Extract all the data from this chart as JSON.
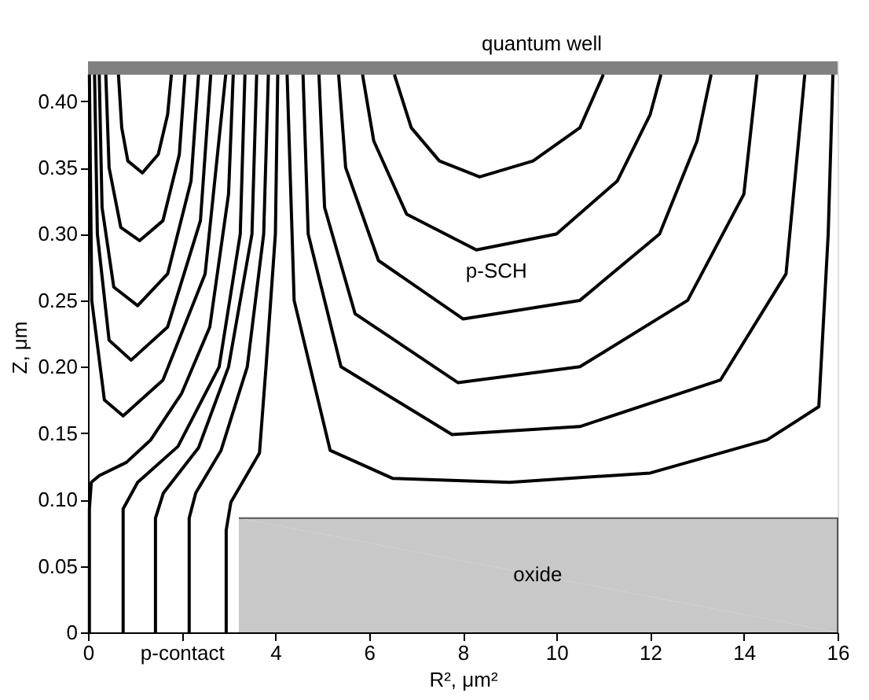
{
  "chart_data": {
    "type": "line",
    "xlabel": "R², μm²",
    "ylabel": "Z, μm",
    "xlim": [
      0,
      16
    ],
    "ylim": [
      0,
      0.43
    ],
    "xticks": [
      0,
      {
        "value": 2,
        "label": "p-contact"
      },
      4,
      6,
      8,
      10,
      12,
      14,
      16
    ],
    "yticks": [
      0,
      0.05,
      {
        "value": 0.1,
        "label": "0.10"
      },
      0.15,
      {
        "value": 0.2,
        "label": "0.20"
      },
      0.25,
      {
        "value": 0.3,
        "label": "0.30"
      },
      0.35,
      {
        "value": 0.4,
        "label": "0.40"
      }
    ],
    "grid": false,
    "series": [
      {
        "type": "area",
        "color": "#c8c8c8",
        "x": [
          3.22,
          16
        ],
        "values": [
          0.086,
          0.086
        ]
      },
      {
        "color": "#000000",
        "x": [
          0.65,
          0.72,
          0.85,
          1.16,
          1.5,
          1.7,
          1.78
        ],
        "values": [
          0.42,
          0.38,
          0.355,
          0.346,
          0.36,
          0.39,
          0.42
        ]
      },
      {
        "color": "#000000",
        "x": [
          0.38,
          0.45,
          0.7,
          1.1,
          1.6,
          1.95,
          2.07
        ],
        "values": [
          0.42,
          0.35,
          0.305,
          0.295,
          0.31,
          0.36,
          0.42
        ]
      },
      {
        "color": "#000000",
        "x": [
          0.24,
          0.3,
          0.55,
          1.06,
          1.7,
          2.2,
          2.36
        ],
        "values": [
          0.42,
          0.32,
          0.26,
          0.246,
          0.27,
          0.34,
          0.42
        ]
      },
      {
        "color": "#000000",
        "x": [
          0.14,
          0.2,
          0.45,
          0.92,
          1.7,
          2.4,
          2.62
        ],
        "values": [
          0.42,
          0.3,
          0.22,
          0.205,
          0.23,
          0.31,
          0.42
        ]
      },
      {
        "color": "#000000",
        "x": [
          0.03,
          0.08,
          0.35,
          0.75,
          1.6,
          2.5,
          2.94
        ],
        "values": [
          0.42,
          0.25,
          0.175,
          0.163,
          0.19,
          0.27,
          0.42
        ]
      },
      {
        "color": "#000000",
        "x": [
          3.1,
          3.0,
          2.6,
          2.0,
          1.34,
          0.82,
          0.24,
          0.07,
          0.03,
          0.03
        ],
        "values": [
          0.42,
          0.33,
          0.23,
          0.18,
          0.145,
          0.128,
          0.118,
          0.113,
          0.093,
          0
        ]
      },
      {
        "color": "#000000",
        "x": [
          3.35,
          3.25,
          2.8,
          1.92,
          1.06,
          0.75,
          0.75
        ],
        "values": [
          0.42,
          0.3,
          0.2,
          0.14,
          0.113,
          0.093,
          0
        ]
      },
      {
        "color": "#000000",
        "x": [
          3.6,
          3.5,
          3.0,
          2.36,
          1.61,
          1.44,
          1.44
        ],
        "values": [
          0.42,
          0.3,
          0.2,
          0.139,
          0.105,
          0.086,
          0
        ]
      },
      {
        "color": "#000000",
        "x": [
          3.85,
          3.75,
          3.4,
          2.84,
          2.3,
          2.16,
          2.16
        ],
        "values": [
          0.42,
          0.3,
          0.2,
          0.137,
          0.105,
          0.086,
          0
        ]
      },
      {
        "color": "#000000",
        "x": [
          4.05,
          4.0,
          3.8,
          3.66,
          3.05,
          2.95,
          2.95
        ],
        "values": [
          0.42,
          0.3,
          0.2,
          0.135,
          0.098,
          0.077,
          0
        ]
      },
      {
        "color": "#000000",
        "x": [
          6.54,
          6.9,
          7.5,
          8.36,
          9.5,
          10.5,
          11.0
        ],
        "values": [
          0.42,
          0.38,
          0.355,
          0.343,
          0.355,
          0.38,
          0.42
        ]
      },
      {
        "color": "#000000",
        "x": [
          5.86,
          6.1,
          6.8,
          8.29,
          10.0,
          11.3,
          12.0,
          12.23
        ],
        "values": [
          0.42,
          0.37,
          0.315,
          0.288,
          0.3,
          0.34,
          0.39,
          0.42
        ]
      },
      {
        "color": "#000000",
        "x": [
          5.35,
          5.5,
          6.2,
          8.01,
          10.5,
          12.2,
          13.0,
          13.3
        ],
        "values": [
          0.42,
          0.35,
          0.28,
          0.236,
          0.25,
          0.3,
          0.37,
          0.42
        ]
      },
      {
        "color": "#000000",
        "x": [
          4.93,
          5.05,
          5.7,
          7.9,
          10.5,
          12.8,
          14.0,
          14.28
        ],
        "values": [
          0.42,
          0.32,
          0.24,
          0.188,
          0.2,
          0.25,
          0.33,
          0.42
        ]
      },
      {
        "color": "#000000",
        "x": [
          4.59,
          4.7,
          5.4,
          7.77,
          10.5,
          13.5,
          14.9,
          15.3
        ],
        "values": [
          0.42,
          0.3,
          0.2,
          0.149,
          0.155,
          0.19,
          0.27,
          0.42
        ]
      },
      {
        "color": "#000000",
        "x": [
          4.25,
          4.4,
          5.17,
          6.5,
          9,
          12,
          14.5,
          15.6,
          15.8,
          15.9
        ],
        "values": [
          0.42,
          0.25,
          0.137,
          0.116,
          0.113,
          0.12,
          0.145,
          0.17,
          0.3,
          0.42
        ]
      }
    ],
    "bands": [
      {
        "axis": "y",
        "from": 0.42,
        "to": 0.43,
        "color": "#808080"
      }
    ],
    "annotations": [
      {
        "text": "quantum well",
        "x": 8.2,
        "y": 0.43
      },
      "p-SCH",
      {
        "text": "oxide",
        "x": 9.6,
        "y": 0.043
      }
    ]
  }
}
